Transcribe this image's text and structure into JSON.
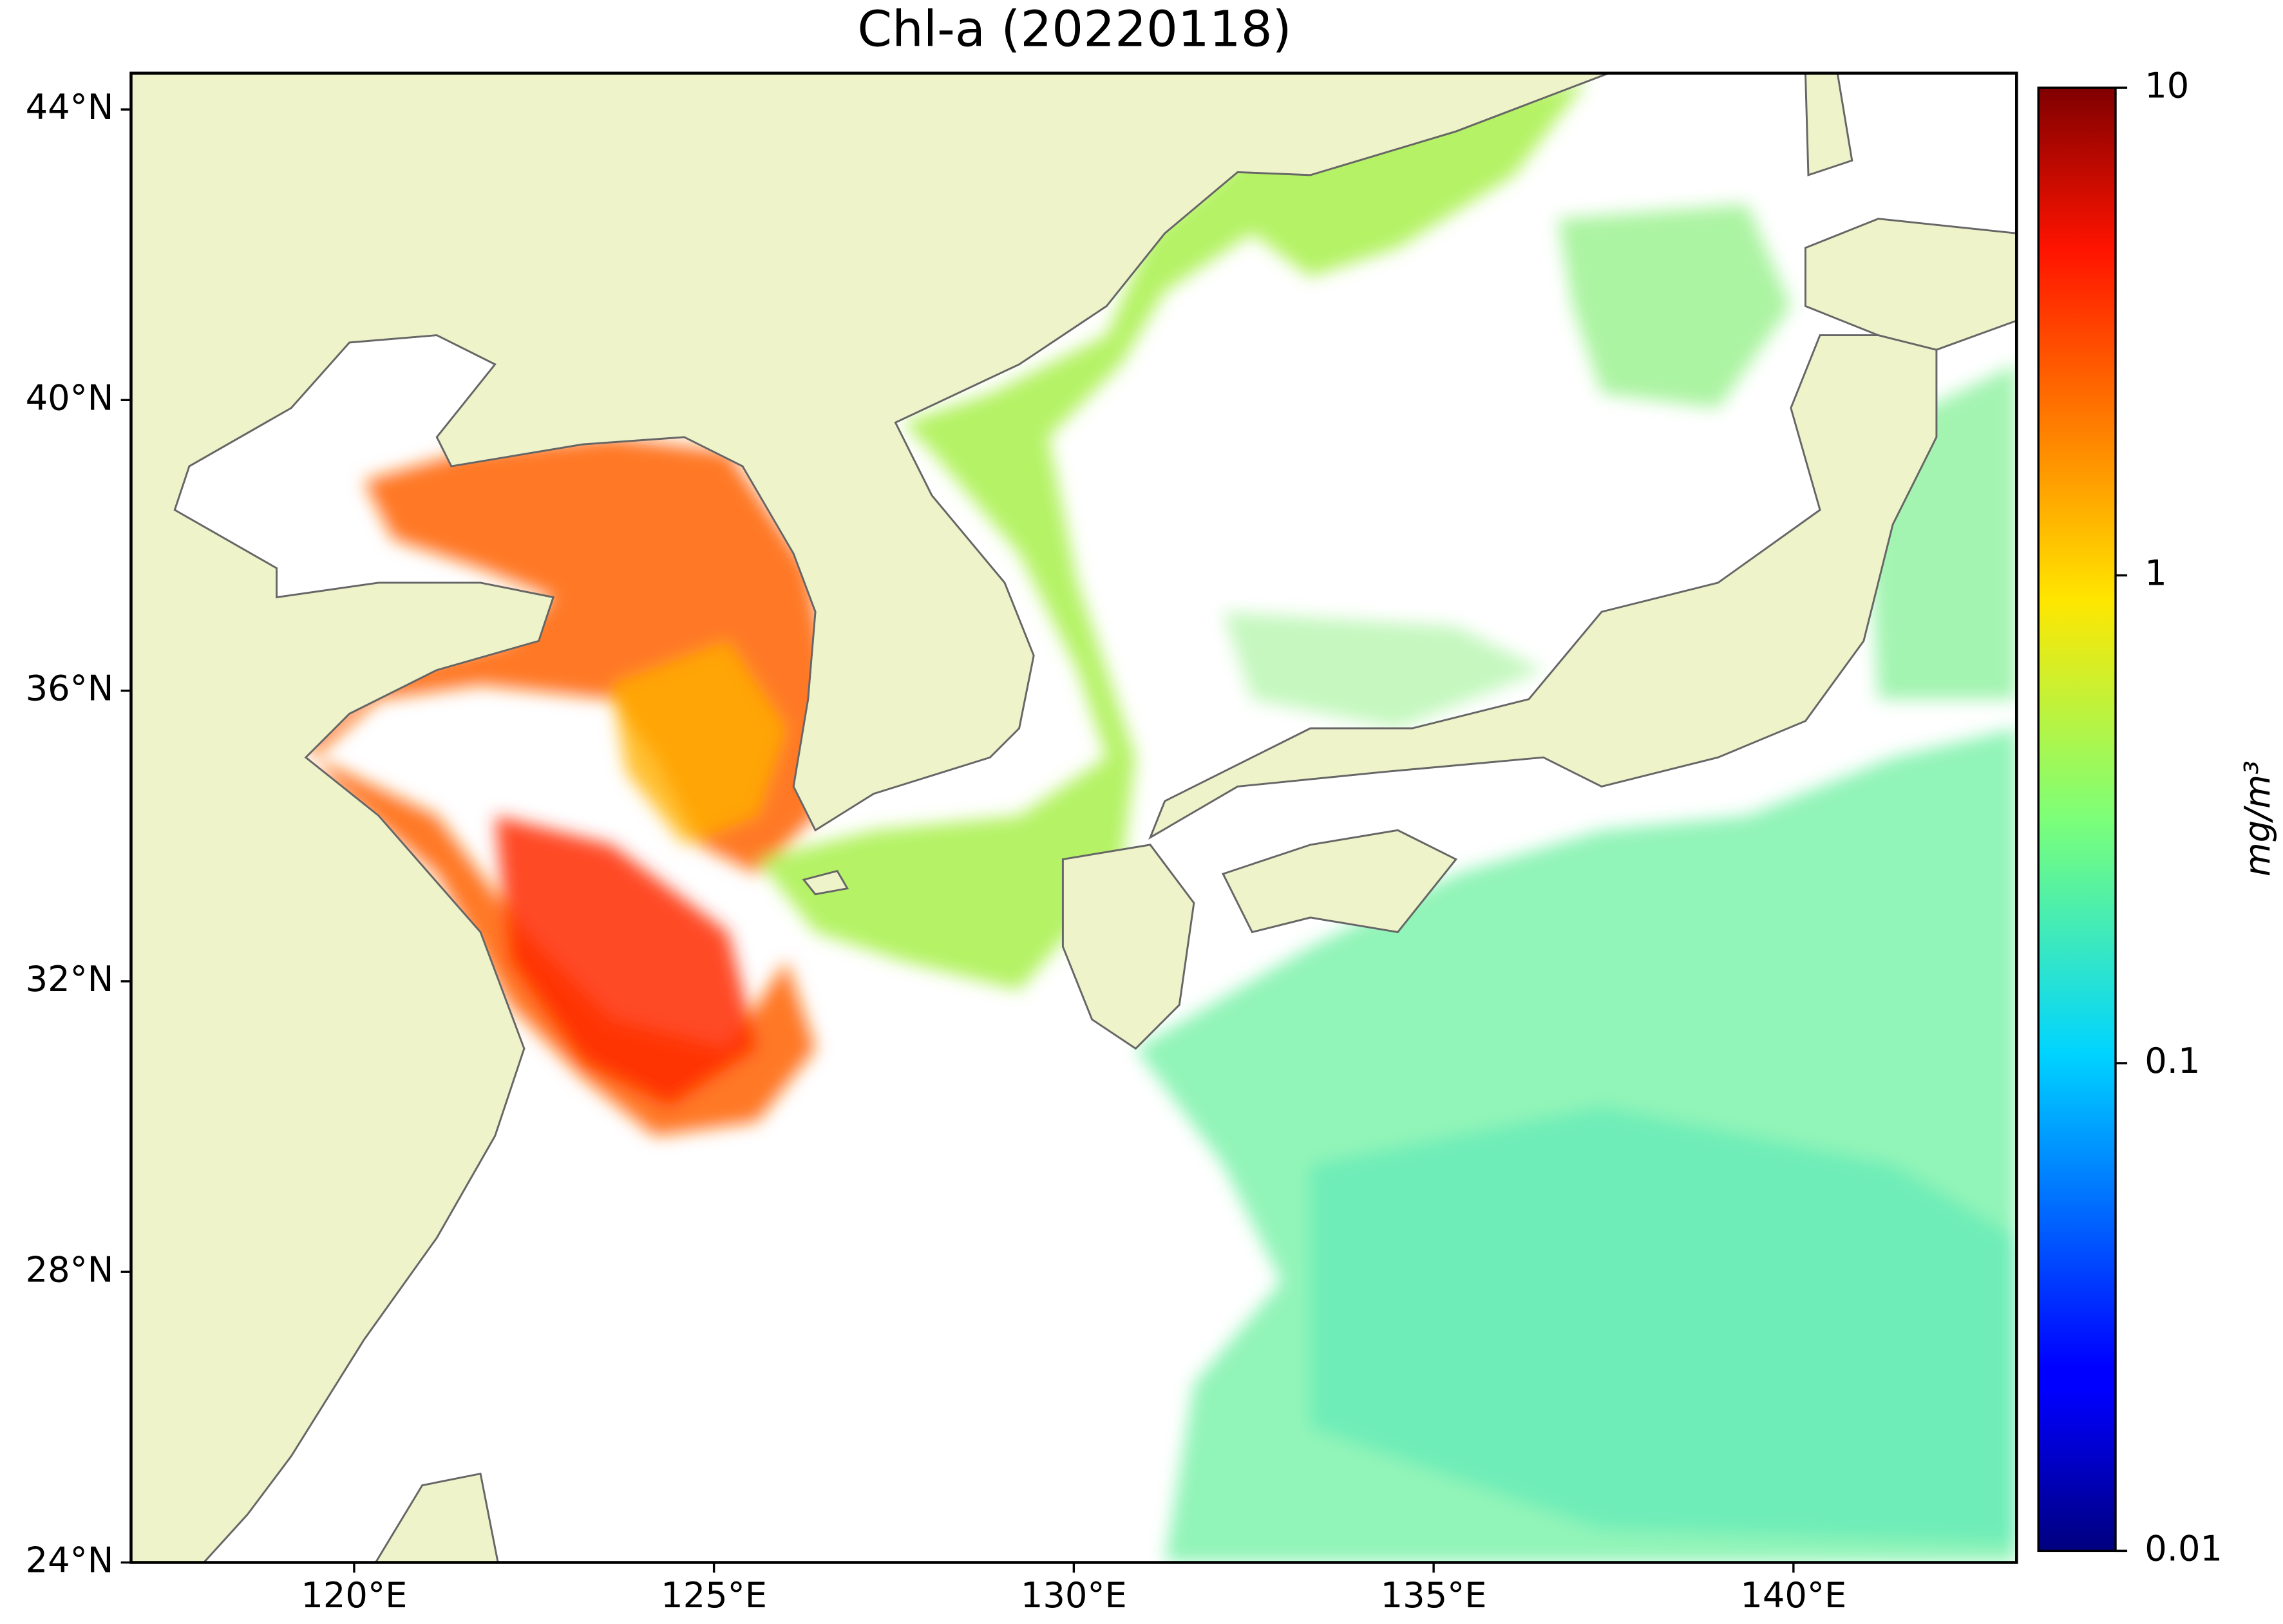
{
  "chart_data": {
    "type": "map",
    "title": "Chl-a (20220118)",
    "xlim": [
      116.9,
      143.1
    ],
    "ylim": [
      24,
      44.5
    ],
    "xticks": [
      {
        "value": 120,
        "label": "120°E"
      },
      {
        "value": 125,
        "label": "125°E"
      },
      {
        "value": 130,
        "label": "130°E"
      },
      {
        "value": 135,
        "label": "135°E"
      },
      {
        "value": 140,
        "label": "140°E"
      }
    ],
    "yticks": [
      {
        "value": 24,
        "label": "24°N"
      },
      {
        "value": 28,
        "label": "28°N"
      },
      {
        "value": 32,
        "label": "32°N"
      },
      {
        "value": 36,
        "label": "36°N"
      },
      {
        "value": 40,
        "label": "40°N"
      },
      {
        "value": 44,
        "label": "44°N"
      }
    ],
    "colorbar": {
      "label": "mg/m³",
      "log": true,
      "lim": [
        0.01,
        10
      ],
      "ticks": [
        0.01,
        0.1,
        1,
        10
      ]
    }
  }
}
